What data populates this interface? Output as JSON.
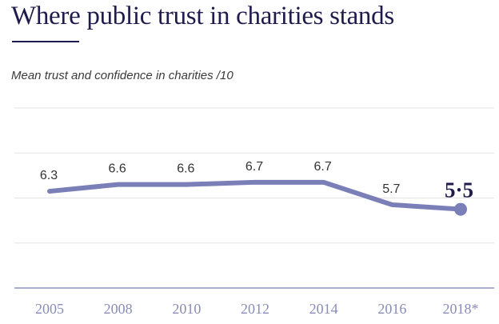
{
  "chart_data": {
    "type": "line",
    "title": "Where public trust in charities stands",
    "subtitle": "Mean trust and confidence in charities /10",
    "categories": [
      "2005",
      "2008",
      "2010",
      "2012",
      "2014",
      "2016",
      "2018*"
    ],
    "series": [
      {
        "name": "Mean trust and confidence in charities",
        "values": [
          6.3,
          6.6,
          6.6,
          6.7,
          6.7,
          5.7,
          5.5
        ],
        "labels": [
          "6.3",
          "6.6",
          "6.6",
          "6.7",
          "6.7",
          "5.7",
          "5·5"
        ]
      }
    ],
    "ylim": [
      2,
      10
    ],
    "grid": true,
    "highlight_last": true
  },
  "colors": {
    "line": "#7b7fb8",
    "title": "#1f1b4d",
    "grid": "#e3e3e3",
    "axis": "#8e90c2",
    "tick_label": "#8a8cb8",
    "value_label": "#333333",
    "highlight_label": "#1f1b4d"
  }
}
